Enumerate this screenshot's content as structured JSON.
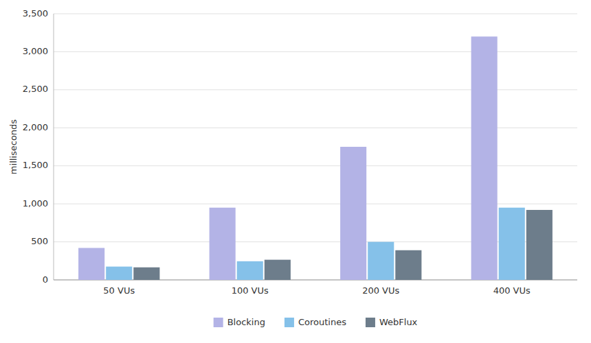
{
  "chart_data": {
    "type": "bar",
    "ylabel": "milliseconds",
    "categories": [
      "50 VUs",
      "100 VUs",
      "200 VUs",
      "400 VUs"
    ],
    "series": [
      {
        "name": "Blocking",
        "color": "#b3b3e6",
        "values": [
          420,
          950,
          1750,
          3200
        ]
      },
      {
        "name": "Coroutines",
        "color": "#85c1e9",
        "values": [
          175,
          245,
          500,
          950
        ]
      },
      {
        "name": "WebFlux",
        "color": "#6d7d8b",
        "values": [
          165,
          265,
          390,
          920
        ]
      }
    ],
    "ylim": [
      0,
      3500
    ],
    "yticks": [
      0,
      500,
      {
        "value": 1000,
        "label": "1,000"
      },
      {
        "value": 1500,
        "label": "1,500"
      },
      {
        "value": 2000,
        "label": "2,000"
      },
      {
        "value": 2500,
        "label": "2,500"
      },
      {
        "value": 3000,
        "label": "3,000"
      },
      {
        "value": 3500,
        "label": "3,500"
      }
    ],
    "grid": true,
    "legend": "bottom"
  }
}
